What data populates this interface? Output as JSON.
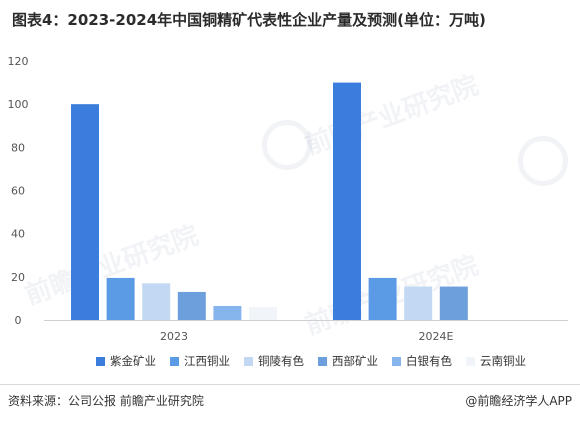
{
  "title": "图表4：2023-2024年中国铜精矿代表性企业产量及预测(单位：万吨)",
  "footer": {
    "source": "资料来源：公司公报 前瞻产业研究院",
    "brand": "@前瞻经济学人APP"
  },
  "watermark": {
    "text": "前瞻产业研究院"
  },
  "chart_data": {
    "type": "bar",
    "categories": [
      "2023",
      "2024E"
    ],
    "series": [
      {
        "name": "紫金矿业",
        "color": "#3b7ddd",
        "values": [
          100,
          110
        ]
      },
      {
        "name": "江西铜业",
        "color": "#5b9be6",
        "values": [
          19.5,
          19.5
        ]
      },
      {
        "name": "铜陵有色",
        "color": "#c3d9f3",
        "values": [
          17,
          15.5
        ]
      },
      {
        "name": "西部矿业",
        "color": "#6c9fdc",
        "values": [
          13,
          15.5
        ]
      },
      {
        "name": "白银有色",
        "color": "#86b5ee",
        "values": [
          6.5,
          null
        ]
      },
      {
        "name": "云南铜业",
        "color": "#f1f4f8",
        "values": [
          6,
          null
        ]
      }
    ],
    "yticks": [
      0,
      20,
      40,
      60,
      80,
      100,
      120
    ],
    "ylim": [
      0,
      120
    ],
    "grid": false,
    "legend": "bottom"
  }
}
